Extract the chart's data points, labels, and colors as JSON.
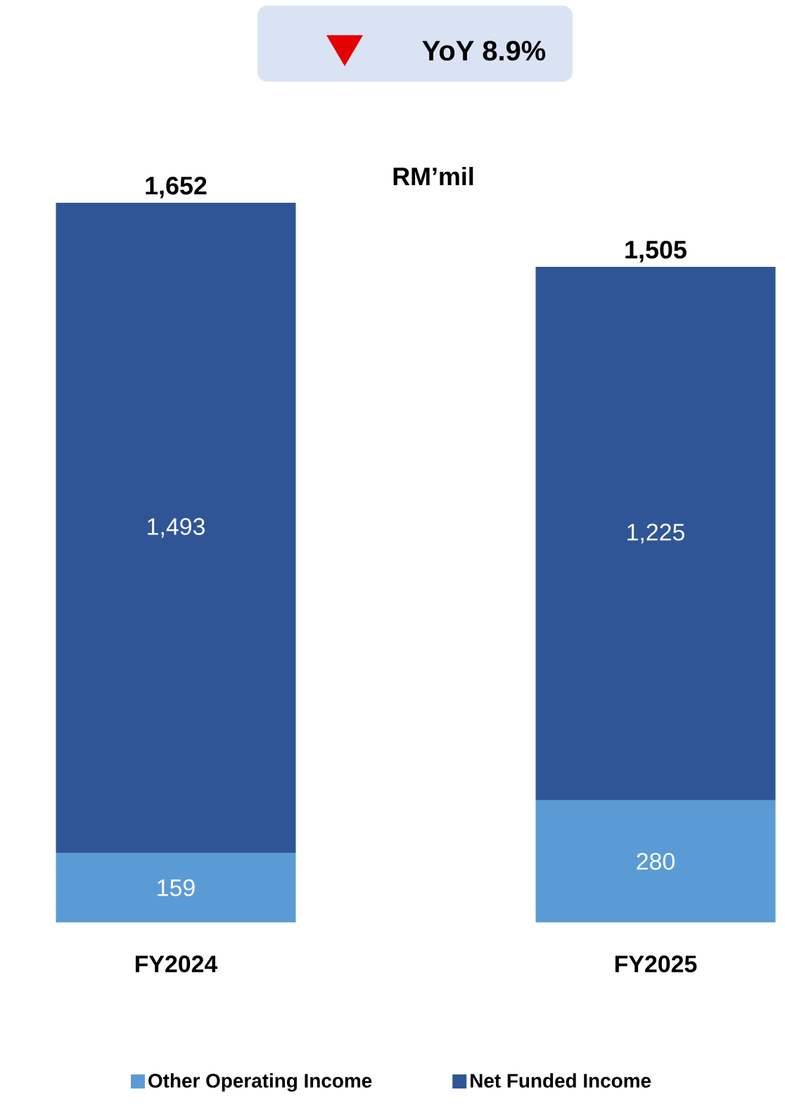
{
  "chart_data": {
    "type": "bar",
    "stacked": true,
    "categories": [
      "FY2024",
      "FY2025"
    ],
    "series": [
      {
        "name": "Other Operating Income",
        "color": "#5b9bd5",
        "values": [
          159,
          280
        ],
        "value_labels": [
          "159",
          "280"
        ]
      },
      {
        "name": "Net Funded Income",
        "color": "#2f5597",
        "values": [
          1493,
          1225
        ],
        "value_labels": [
          "1,493",
          "1,225"
        ]
      }
    ],
    "totals": [
      "1,652",
      "1,505"
    ],
    "annotations": [
      "YoY 8.9%",
      "RM’mil"
    ],
    "legend": "bottom",
    "grid": false
  }
}
